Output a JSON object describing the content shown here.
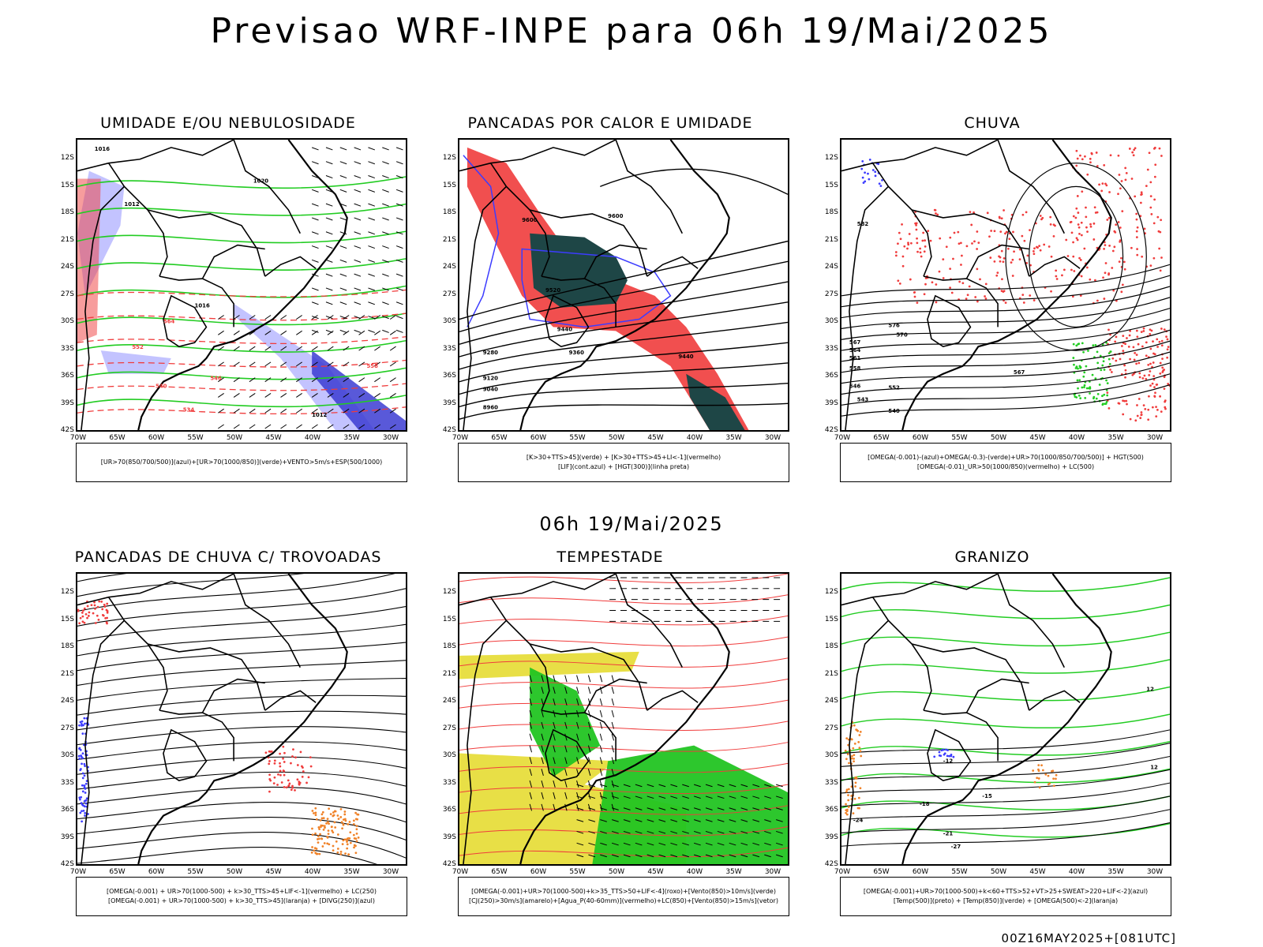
{
  "header": {
    "title": "Previsao WRF-INPE  para 06h 19/Mai/2025",
    "subtitle": "06h 19/Mai/2025",
    "run_stamp": "00Z16MAY2025+[081UTC]"
  },
  "axes": {
    "lat_labels": [
      "12S",
      "15S",
      "18S",
      "21S",
      "24S",
      "27S",
      "30S",
      "33S",
      "36S",
      "39S",
      "42S"
    ],
    "lon_labels": [
      "70W",
      "65W",
      "60W",
      "55W",
      "50W",
      "45W",
      "40W",
      "35W",
      "30W"
    ]
  },
  "panels": [
    {
      "title": "UMIDADE E/OU NEBULOSIDADE",
      "legend": [
        "[UR>70(850/700/500)](azul)+[UR>70(1000/850)](verde)+VENTO>5m/s+ESP(500/1000)"
      ]
    },
    {
      "title": "PANCADAS POR CALOR E UMIDADE",
      "legend": [
        "[K>30+TTS>45](verde) + [K>30+TTS>45+LI<-1](vermelho)",
        "[LIF](cont.azul) + [HGT(300)](linha preta)"
      ]
    },
    {
      "title": "CHUVA",
      "legend": [
        "[OMEGA(-0.001)-(azul)+OMEGA(-0.3)-(verde)+UR>70(1000/850/700/500)] + HGT(500)",
        "[OMEGA(-0.01)_UR>50(1000/850)(vermelho) + LC(500)"
      ]
    },
    {
      "title": "PANCADAS DE CHUVA C/ TROVOADAS",
      "legend": [
        "[OMEGA(-0.001) + UR>70(1000-500) + k>30_TTS>45+LIF<-1](vermelho) + LC(250)",
        "[OMEGA(-0.001) + UR>70(1000-500) + k>30_TTS>45](laranja) + [DIVG(250)](azul)"
      ]
    },
    {
      "title": "TEMPESTADE",
      "legend": [
        "[OMEGA(-0.001)+UR>70(1000-500)+k>35_TTS>50+LIF<-4](roxo)+[Vento(850)>10m/s](verde)",
        "[CJ(250)>30m/s](amarelo)+[Agua_P(40-60mm)](vermelho)+LC(850)+[Vento(850)>15m/s](vetor)"
      ]
    },
    {
      "title": "GRANIZO",
      "legend": [
        "[OMEGA(-0.001)+UR>70(1000-500)+k<60+TTS>52+VT>25+SWEAT>220+LIF<-2](azul)",
        "[Temp(500)](preto) + [Temp(850)](verde) + [OMEGA(500)<-2](laranja)"
      ]
    }
  ],
  "contour_labels": {
    "p1": [
      "1016",
      "1012",
      "1020",
      "1016",
      "1012",
      "564",
      "552",
      "540",
      "546",
      "558",
      "534"
    ],
    "p2": [
      "9600",
      "9520",
      "9440",
      "9360",
      "9280",
      "9120",
      "9040",
      "8960",
      "9600",
      "9440"
    ],
    "p3": [
      "582",
      "576",
      "570",
      "567",
      "564",
      "561",
      "558",
      "552",
      "546",
      "543",
      "540",
      "567"
    ],
    "p6": [
      "-12",
      "-15",
      "-18",
      "-21",
      "-24",
      "-27",
      "12",
      "12"
    ]
  },
  "colors": {
    "contour_black": "#000000",
    "humidity_green": "#22cc22",
    "humidity_blue": "#b4b4ff",
    "deep_blue": "#3c3cd2",
    "dense_teal": "#1e4646",
    "red": "#f03c3c",
    "orange": "#f08228",
    "yellow": "#e6dc32",
    "lif_blue": "#3c3cff"
  }
}
